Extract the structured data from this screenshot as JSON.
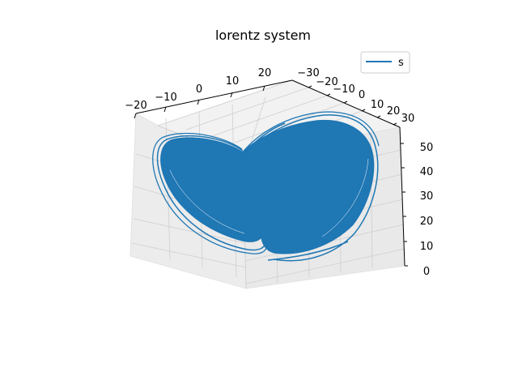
{
  "chart_data": {
    "type": "line",
    "projection": "3d",
    "title": "lorentz system",
    "series": [
      {
        "name": "s",
        "color": "#1f77b4",
        "description_values": "Lorenz attractor trajectory (x, y, z) — dense double-lobe butterfly",
        "x": [
          -6.6,
          -10.4,
          -13.2,
          -11.4,
          -4.1,
          3.2,
          11.5,
          17.2,
          14.8,
          6.9,
          0.5,
          7.9,
          15.3,
          13.8
        ],
        "y": [
          -4.4,
          -12.1,
          -14.9,
          -8.2,
          -1.4,
          5.3,
          15.1,
          20.1,
          11.6,
          2.4,
          1.2,
          11.7,
          17.5,
          10.3
        ],
        "z": [
          28.4,
          24.9,
          35.3,
          39.1,
          32.5,
          20.2,
          24.8,
          39.4,
          41.2,
          27.6,
          14.3,
          25.7,
          38.9,
          40.6
        ]
      }
    ],
    "axes": {
      "x": {
        "ticks": [
          "−20",
          "−10",
          "0",
          "10",
          "20"
        ],
        "range": [
          -20,
          20
        ]
      },
      "y": {
        "ticks": [
          "−30",
          "−20",
          "−10",
          "0",
          "10",
          "20",
          "30"
        ],
        "range": [
          -30,
          30
        ]
      },
      "z": {
        "ticks": [
          "0",
          "10",
          "20",
          "30",
          "40",
          "50"
        ],
        "range": [
          0,
          50
        ]
      }
    },
    "legend": {
      "position": "top-right",
      "entries": [
        "s"
      ]
    },
    "grid": true
  }
}
